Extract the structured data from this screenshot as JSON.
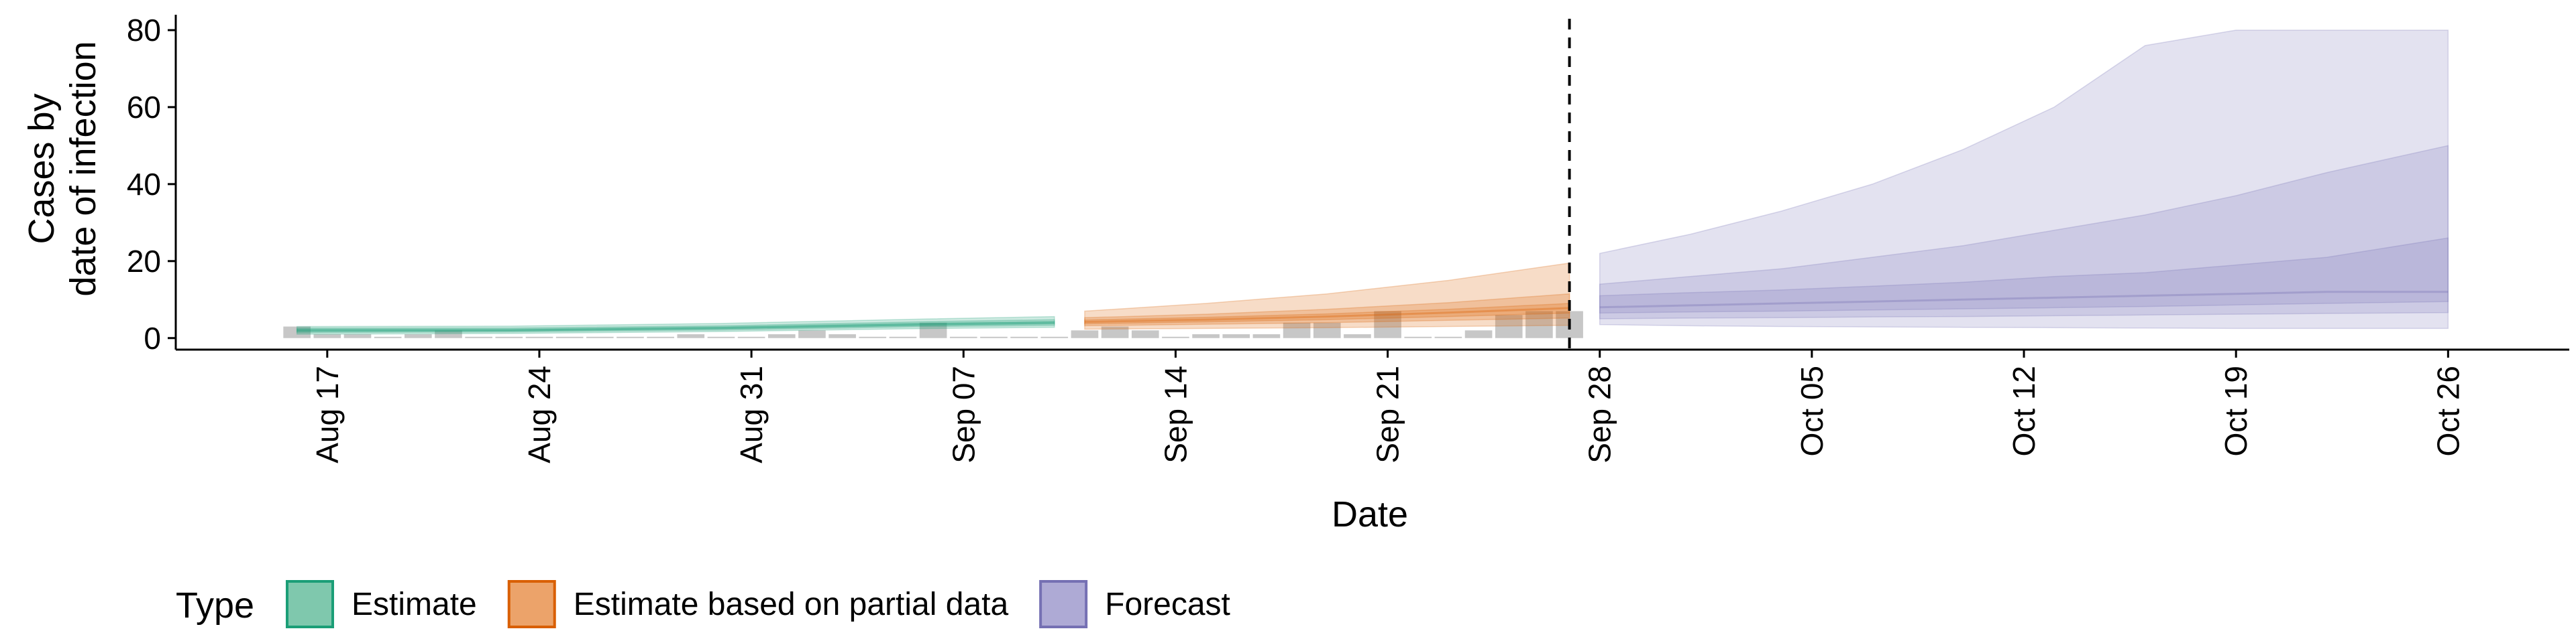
{
  "chart_data": {
    "type": "area",
    "title": "",
    "xlabel": "Date",
    "ylabel_lines": [
      "Cases by",
      "date of infection"
    ],
    "ylim": [
      -3,
      84
    ],
    "yticks": [
      0,
      20,
      40,
      60,
      80
    ],
    "x_range": [
      "2020-08-12",
      "2020-10-30"
    ],
    "xticks": [
      {
        "date": "2020-08-17",
        "label": "Aug 17"
      },
      {
        "date": "2020-08-24",
        "label": "Aug 24"
      },
      {
        "date": "2020-08-31",
        "label": "Aug 31"
      },
      {
        "date": "2020-09-07",
        "label": "Sep 07"
      },
      {
        "date": "2020-09-14",
        "label": "Sep 14"
      },
      {
        "date": "2020-09-21",
        "label": "Sep 21"
      },
      {
        "date": "2020-09-28",
        "label": "Sep 28"
      },
      {
        "date": "2020-10-05",
        "label": "Oct 05"
      },
      {
        "date": "2020-10-12",
        "label": "Oct 12"
      },
      {
        "date": "2020-10-19",
        "label": "Oct 19"
      },
      {
        "date": "2020-10-26",
        "label": "Oct 26"
      }
    ],
    "forecast_start": "2020-09-27",
    "observed_cases": {
      "dates": [
        "2020-08-16",
        "2020-08-17",
        "2020-08-18",
        "2020-08-19",
        "2020-08-20",
        "2020-08-21",
        "2020-08-22",
        "2020-08-23",
        "2020-08-24",
        "2020-08-25",
        "2020-08-26",
        "2020-08-27",
        "2020-08-28",
        "2020-08-29",
        "2020-08-30",
        "2020-08-31",
        "2020-09-01",
        "2020-09-02",
        "2020-09-03",
        "2020-09-04",
        "2020-09-05",
        "2020-09-06",
        "2020-09-07",
        "2020-09-08",
        "2020-09-09",
        "2020-09-10",
        "2020-09-11",
        "2020-09-12",
        "2020-09-13",
        "2020-09-14",
        "2020-09-15",
        "2020-09-16",
        "2020-09-17",
        "2020-09-18",
        "2020-09-19",
        "2020-09-20",
        "2020-09-21",
        "2020-09-22",
        "2020-09-23",
        "2020-09-24",
        "2020-09-25",
        "2020-09-26",
        "2020-09-27"
      ],
      "values": [
        3,
        1,
        1,
        0,
        1,
        2,
        0,
        0,
        0,
        0,
        0,
        0,
        0,
        1,
        0,
        0,
        1,
        2,
        1,
        0,
        0,
        4,
        0,
        0,
        0,
        0,
        2,
        3,
        2,
        0,
        1,
        1,
        1,
        4,
        4,
        1,
        7,
        0,
        0,
        2,
        6,
        7,
        7
      ]
    },
    "series": [
      {
        "name": "Estimate",
        "color": "#1b9e77",
        "dates": [
          "2020-08-16",
          "2020-08-23",
          "2020-08-30",
          "2020-09-06",
          "2020-09-10"
        ],
        "median": [
          2,
          2,
          2.6,
          3.6,
          4
        ],
        "bands": [
          {
            "level": "20%",
            "lower": [
              1.7,
              1.9,
              2.4,
              3.3,
              3.7
            ],
            "upper": [
              2.3,
              2.3,
              2.9,
              3.9,
              4.3
            ]
          },
          {
            "level": "50%",
            "lower": [
              1.4,
              1.6,
              2.1,
              3.0,
              3.3
            ],
            "upper": [
              2.6,
              2.6,
              3.2,
              4.3,
              4.8
            ]
          },
          {
            "level": "90%",
            "lower": [
              1.0,
              1.2,
              1.7,
              2.5,
              2.8
            ],
            "upper": [
              3.0,
              3.1,
              3.8,
              5.0,
              5.6
            ]
          }
        ]
      },
      {
        "name": "Estimate based on partial data",
        "color": "#d95f02",
        "dates": [
          "2020-09-11",
          "2020-09-15",
          "2020-09-19",
          "2020-09-23",
          "2020-09-27"
        ],
        "median": [
          4.2,
          4.8,
          5.6,
          6.6,
          7.8
        ],
        "bands": [
          {
            "level": "20%",
            "lower": [
              3.7,
              4.2,
              4.8,
              5.6,
              6.5
            ],
            "upper": [
              4.7,
              5.4,
              6.3,
              7.5,
              9.0
            ]
          },
          {
            "level": "50%",
            "lower": [
              3.2,
              3.6,
              4.0,
              4.6,
              5.2
            ],
            "upper": [
              5.3,
              6.2,
              7.5,
              9.2,
              11.5
            ]
          },
          {
            "level": "90%",
            "lower": [
              2.3,
              2.5,
              2.7,
              3.0,
              3.3
            ],
            "upper": [
              7.0,
              9.0,
              11.5,
              15.0,
              19.5
            ]
          }
        ]
      },
      {
        "name": "Forecast",
        "color": "#7570b3",
        "dates": [
          "2020-09-28",
          "2020-10-01",
          "2020-10-04",
          "2020-10-07",
          "2020-10-10",
          "2020-10-13",
          "2020-10-16",
          "2020-10-19",
          "2020-10-22",
          "2020-10-26"
        ],
        "median": [
          8,
          8.5,
          9,
          9.5,
          10,
          10.5,
          11,
          11.5,
          12,
          12
        ],
        "bands": [
          {
            "level": "20%",
            "lower": [
              6.5,
              6.8,
              7.0,
              7.3,
              7.6,
              7.9,
              8.2,
              8.6,
              9.0,
              9.5
            ],
            "upper": [
              11,
              11.8,
              12.5,
              13.5,
              14.5,
              16,
              17,
              19,
              21,
              26
            ]
          },
          {
            "level": "50%",
            "lower": [
              5,
              5.2,
              5.3,
              5.5,
              5.6,
              5.8,
              6.0,
              6.2,
              6.4,
              6.6
            ],
            "upper": [
              14,
              16,
              18,
              21,
              24,
              28,
              32,
              37,
              43,
              50
            ]
          },
          {
            "level": "90%",
            "lower": [
              3.5,
              3.2,
              3.0,
              2.9,
              2.8,
              2.7,
              2.6,
              2.5,
              2.5,
              2.5
            ],
            "upper": [
              22,
              27,
              33,
              40,
              49,
              60,
              76,
              80,
              80,
              80
            ]
          }
        ]
      }
    ],
    "legend": {
      "position": "bottom-left",
      "title": "Type",
      "entries": [
        {
          "label": "Estimate",
          "fill": "#7fc8ad",
          "stroke": "#1b9e77"
        },
        {
          "label": "Estimate based on partial data",
          "fill": "#eca36a",
          "stroke": "#d95f02"
        },
        {
          "label": "Forecast",
          "fill": "#aeaad5",
          "stroke": "#7570b3"
        }
      ]
    },
    "grid": false,
    "bar_color": "#bdbdbd"
  }
}
